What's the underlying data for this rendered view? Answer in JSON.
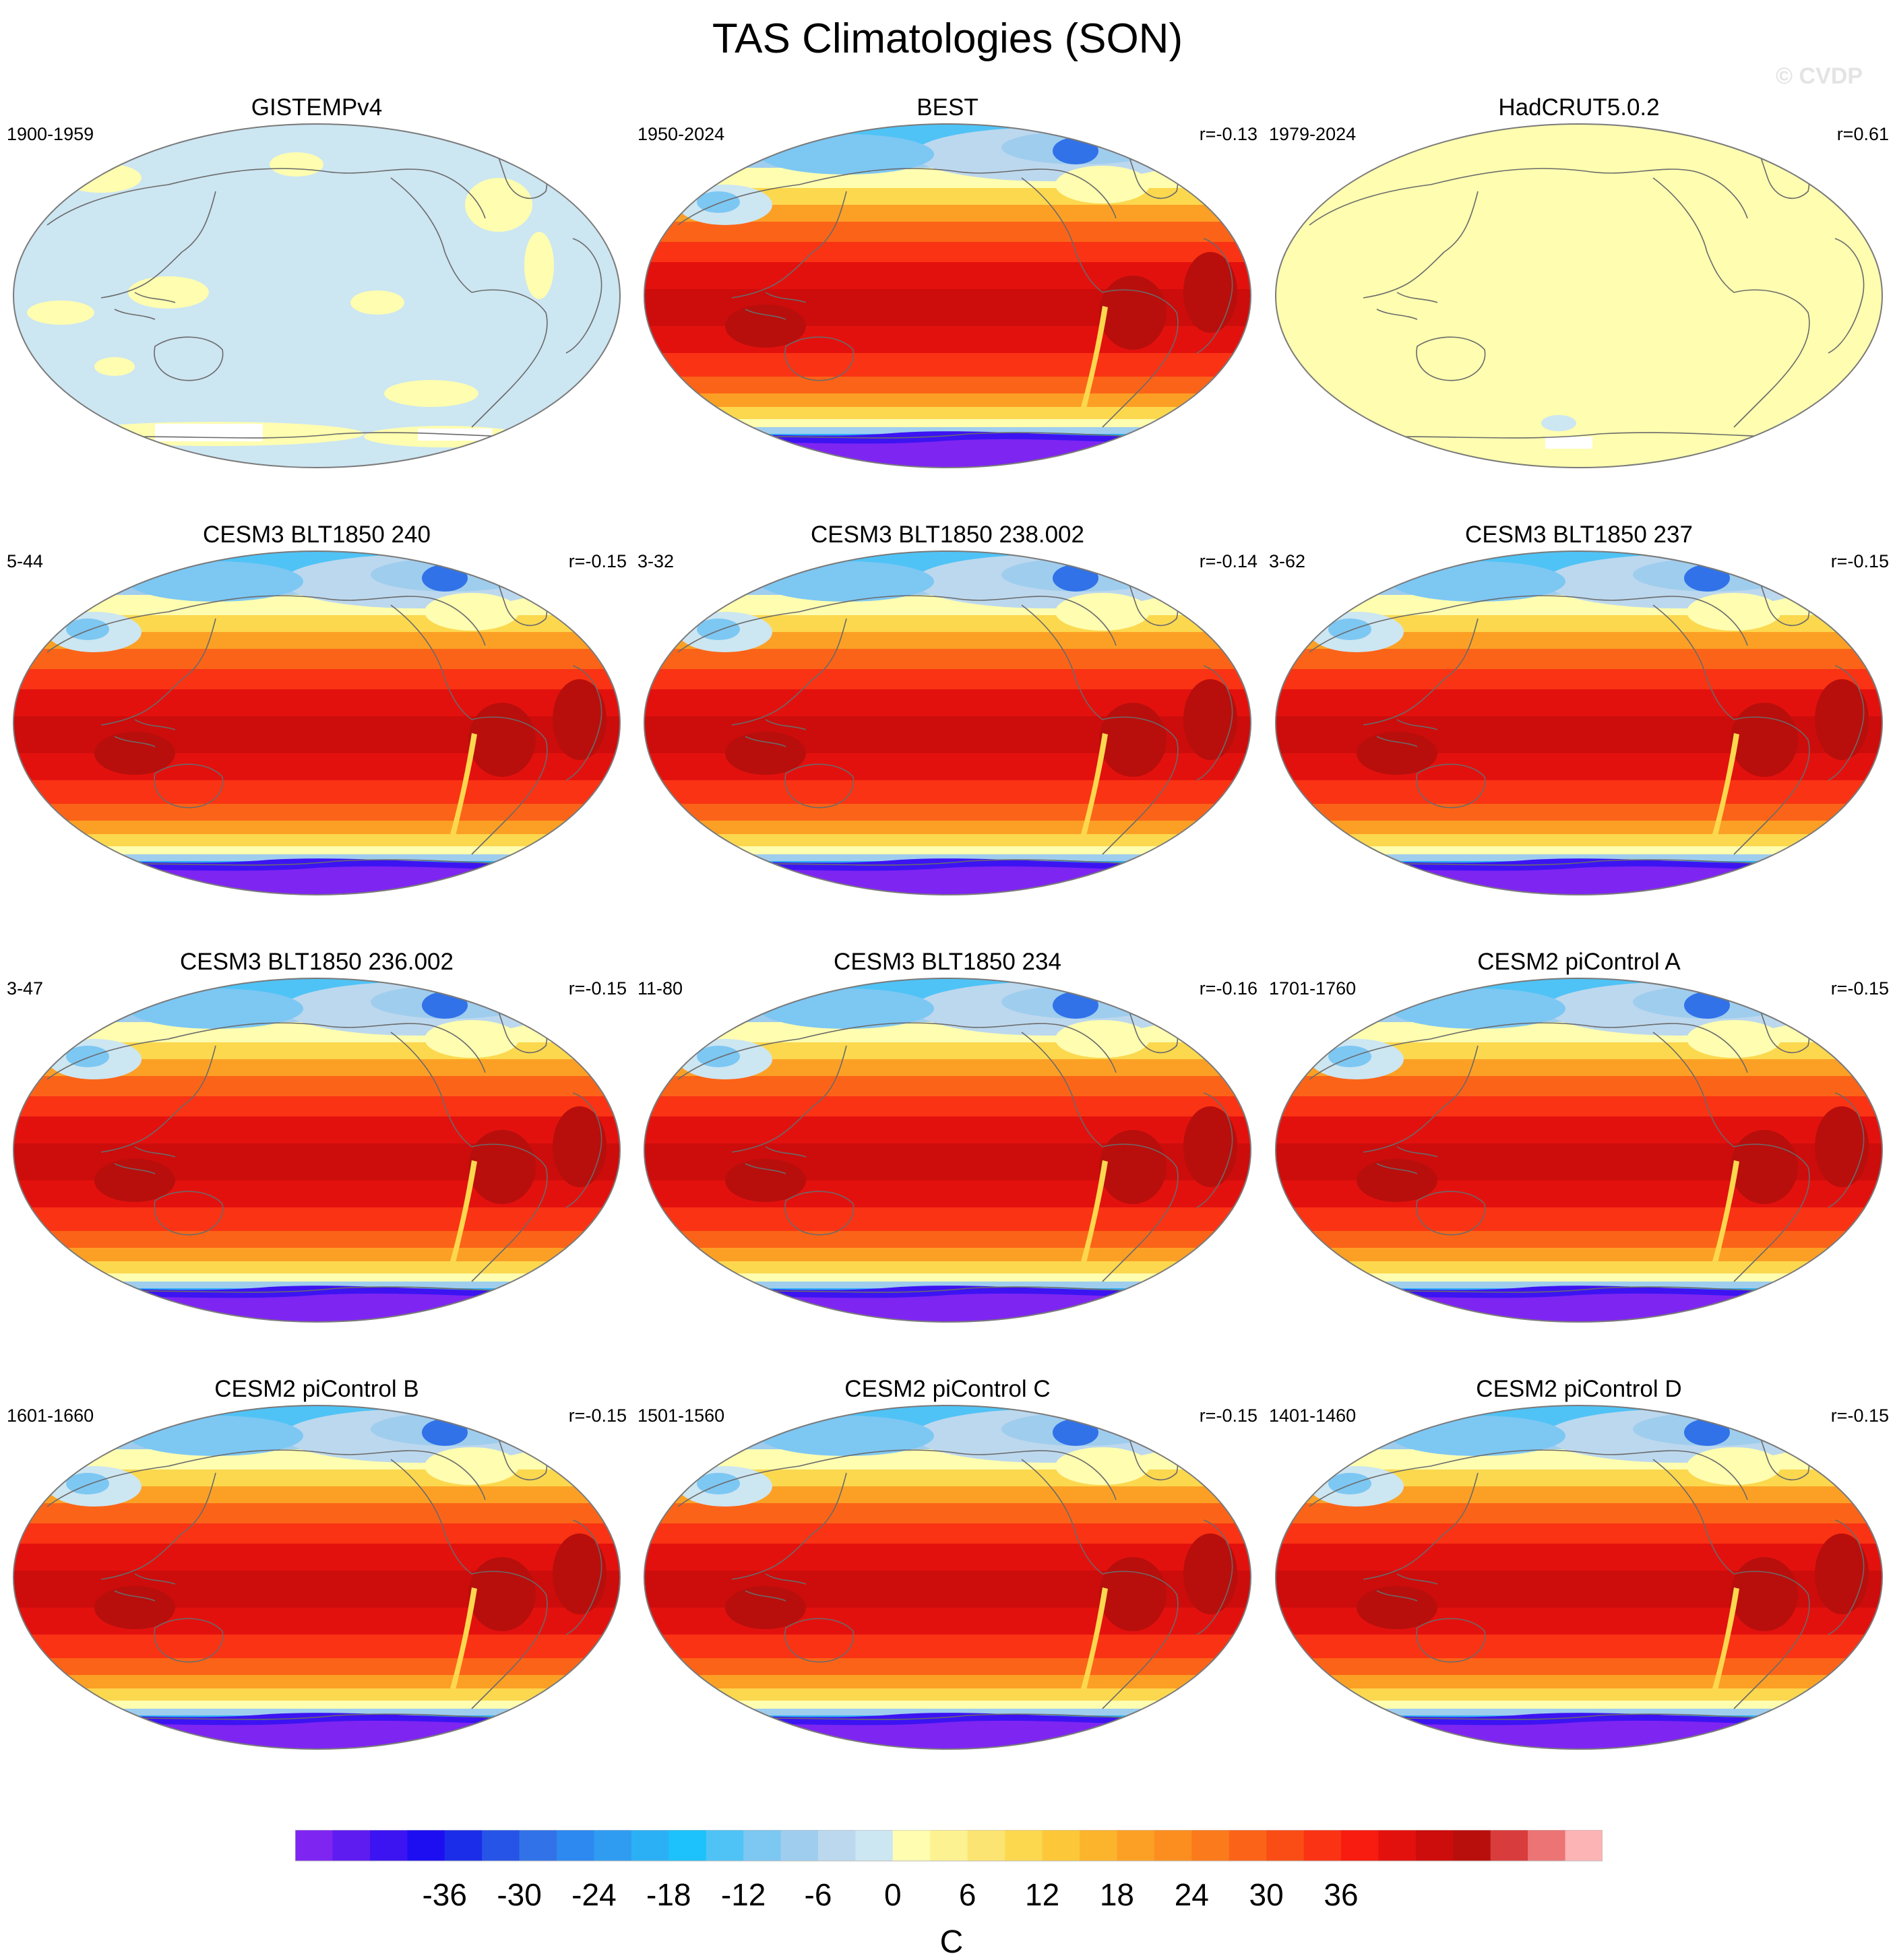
{
  "title": "TAS Climatologies (SON)",
  "watermark": "© CVDP",
  "units": "C",
  "palette": {
    "c0": "#7e25f2",
    "c1": "#5f1cf0",
    "c2": "#3c14f2",
    "c3": "#1d0ef2",
    "c4": "#1b2de8",
    "c5": "#2654e6",
    "c6": "#3172e8",
    "c7": "#2d88f0",
    "c8": "#2f9cf2",
    "c9": "#2cb0f5",
    "c10": "#1dc1fb",
    "c11": "#4fc3f6",
    "c12": "#7dc7f3",
    "c13": "#9fcdee",
    "c14": "#bcd8ee",
    "c15": "#cce6f2",
    "c16": "#fefdb0",
    "c17": "#fdf291",
    "c18": "#fce472",
    "c19": "#fcd84f",
    "c20": "#fcc83a",
    "c21": "#fcb42d",
    "c22": "#fca025",
    "c23": "#fc8e1f",
    "c24": "#fb7a1b",
    "c25": "#fb6418",
    "c26": "#fa4d16",
    "c27": "#fa3314",
    "c28": "#f71b10",
    "c29": "#e3110e",
    "c30": "#cc0d0c",
    "c31": "#b80f0c",
    "c32": "#d93c3c",
    "c33": "#ec7474",
    "c34": "#fcb4b4"
  },
  "colorbar": {
    "tick_labels": [
      "-36",
      "-30",
      "-24",
      "-18",
      "-12",
      "-6",
      "0",
      "6",
      "12",
      "18",
      "24",
      "30",
      "36"
    ]
  },
  "panels": [
    {
      "title": "GISTEMPv4",
      "years": "1900-1959",
      "corr": "",
      "field": "near-zero"
    },
    {
      "title": "BEST",
      "years": "1950-2024",
      "corr": "r=-0.13",
      "field": "full"
    },
    {
      "title": "HadCRUT5.0.2",
      "years": "1979-2024",
      "corr": "r=0.61",
      "field": "near-zero-warm"
    },
    {
      "title": "CESM3 BLT1850 240",
      "years": "5-44",
      "corr": "r=-0.15",
      "field": "full"
    },
    {
      "title": "CESM3 BLT1850 238.002",
      "years": "3-32",
      "corr": "r=-0.14",
      "field": "full"
    },
    {
      "title": "CESM3 BLT1850 237",
      "years": "3-62",
      "corr": "r=-0.15",
      "field": "full"
    },
    {
      "title": "CESM3 BLT1850 236.002",
      "years": "3-47",
      "corr": "r=-0.15",
      "field": "full"
    },
    {
      "title": "CESM3 BLT1850 234",
      "years": "11-80",
      "corr": "r=-0.16",
      "field": "full"
    },
    {
      "title": "CESM2 piControl A",
      "years": "1701-1760",
      "corr": "r=-0.15",
      "field": "full"
    },
    {
      "title": "CESM2 piControl B",
      "years": "1601-1660",
      "corr": "r=-0.15",
      "field": "full"
    },
    {
      "title": "CESM2 piControl C",
      "years": "1501-1560",
      "corr": "r=-0.15",
      "field": "full"
    },
    {
      "title": "CESM2 piControl D",
      "years": "1401-1460",
      "corr": "r=-0.15",
      "field": "full"
    }
  ]
}
